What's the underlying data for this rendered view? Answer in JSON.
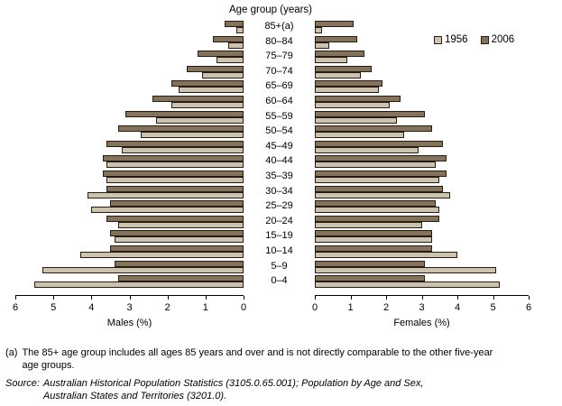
{
  "title": "Age group (years)",
  "colors": {
    "1956": "#cbc3b2",
    "2006": "#82735f",
    "outline": "#2b1a0e"
  },
  "legend": {
    "items": [
      {
        "label": "1956"
      },
      {
        "label": "2006"
      }
    ]
  },
  "axes": {
    "male_label": "Males (%)",
    "female_label": "Females (%)",
    "male_ticks": [
      6,
      5,
      4,
      3,
      2,
      1,
      0
    ],
    "female_ticks": [
      0,
      1,
      2,
      3,
      4,
      5,
      6
    ],
    "max": 6
  },
  "chart_data": {
    "type": "bar",
    "subtype": "population-pyramid",
    "title": "Age group (years)",
    "unit": "% of total population",
    "xlim": [
      0,
      6
    ],
    "categories": [
      "85+(a)",
      "80–84",
      "75–79",
      "70–74",
      "65–69",
      "60–64",
      "55–59",
      "50–54",
      "45–49",
      "40–44",
      "35–39",
      "30–34",
      "25–29",
      "20–24",
      "15–19",
      "10–14",
      "5–9",
      "0–4"
    ],
    "series": [
      {
        "name": "1956",
        "side": "male",
        "values": [
          0.2,
          0.4,
          0.7,
          1.1,
          1.7,
          1.9,
          2.3,
          2.7,
          3.2,
          3.6,
          3.6,
          4.1,
          4.0,
          3.3,
          3.4,
          4.3,
          5.3,
          5.5
        ]
      },
      {
        "name": "2006",
        "side": "male",
        "values": [
          0.5,
          0.8,
          1.2,
          1.5,
          1.9,
          2.4,
          3.1,
          3.3,
          3.6,
          3.7,
          3.7,
          3.6,
          3.5,
          3.6,
          3.5,
          3.5,
          3.4,
          3.3
        ]
      },
      {
        "name": "1956",
        "side": "female",
        "values": [
          0.2,
          0.4,
          0.9,
          1.3,
          1.8,
          2.1,
          2.3,
          2.5,
          2.9,
          3.4,
          3.5,
          3.8,
          3.5,
          3.0,
          3.3,
          4.0,
          5.1,
          5.2
        ]
      },
      {
        "name": "2006",
        "side": "female",
        "values": [
          1.1,
          1.2,
          1.4,
          1.6,
          1.9,
          2.4,
          3.1,
          3.3,
          3.6,
          3.7,
          3.7,
          3.6,
          3.4,
          3.5,
          3.3,
          3.3,
          3.1,
          3.1
        ]
      }
    ],
    "xlabel_left": "Males (%)",
    "xlabel_right": "Females (%)",
    "legend_position": "top-right",
    "grid": false
  },
  "footnote": {
    "marker": "(a)",
    "lines": [
      "The 85+ age group includes all ages 85 years and over and is not directly comparable to the other five-year",
      "age groups."
    ]
  },
  "source": {
    "prefix": "Source:",
    "lines": [
      "Australian Historical Population Statistics (3105.0.65.001); Population by Age and Sex,",
      "Australian States and Territories (3201.0)."
    ]
  }
}
